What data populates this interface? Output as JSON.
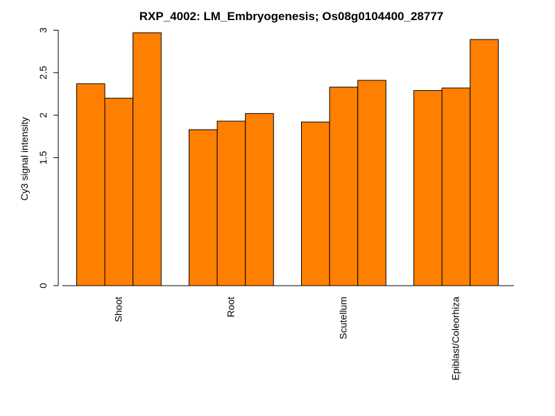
{
  "chart_data": {
    "type": "bar",
    "title": "RXP_4002: LM_Embryogenesis; Os08g0104400_28777",
    "xlabel": "",
    "ylabel": "Cy3 signal intensity",
    "categories": [
      "Shoot",
      "Root",
      "Scutellum",
      "Epiblast/Coleorhiza"
    ],
    "values": [
      [
        2.37,
        2.2,
        2.97
      ],
      [
        1.83,
        1.93,
        2.02
      ],
      [
        1.92,
        2.33,
        2.41
      ],
      [
        2.29,
        2.32,
        2.89
      ]
    ],
    "yticks": [
      "0",
      "1.5",
      "2",
      "2.5",
      "3"
    ],
    "ylim": [
      0,
      3
    ],
    "bar_color": "#ff7f00",
    "bar_stroke": "#000000",
    "grid": false,
    "legend": "none"
  }
}
